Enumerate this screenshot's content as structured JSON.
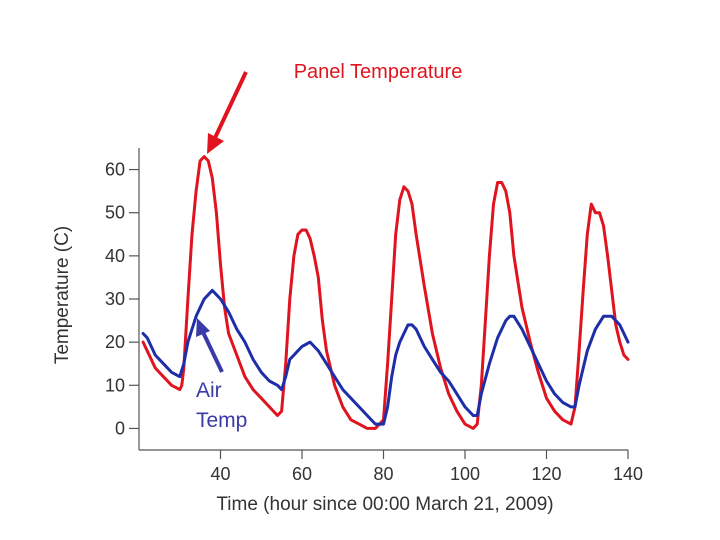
{
  "chart_data": {
    "type": "line",
    "xlabel": "Time (hour since 00:00 March 21, 2009)",
    "ylabel": "Temperature (C)",
    "xlim": [
      20,
      140
    ],
    "ylim": [
      -5,
      65
    ],
    "xticks": [
      40,
      60,
      80,
      100,
      120,
      140
    ],
    "yticks": [
      0,
      10,
      20,
      30,
      40,
      50,
      60
    ],
    "grid": false,
    "series": [
      {
        "name": "Panel Temperature",
        "color": "#e0141e",
        "x": [
          21,
          22,
          24,
          26,
          28,
          30,
          30.5,
          31,
          32,
          33,
          34,
          35,
          36,
          37,
          38,
          39,
          40,
          41,
          42,
          44,
          46,
          48,
          50,
          52,
          54,
          55,
          56,
          57,
          58,
          59,
          60,
          61,
          62,
          63,
          64,
          65,
          66,
          68,
          70,
          72,
          74,
          76,
          78,
          80,
          81,
          82,
          83,
          84,
          85,
          86,
          87,
          88,
          90,
          92,
          94,
          96,
          98,
          100,
          102,
          103,
          104,
          105,
          106,
          107,
          108,
          109,
          110,
          111,
          112,
          114,
          116,
          118,
          120,
          122,
          124,
          126,
          127,
          128,
          129,
          130,
          131,
          132,
          133,
          134,
          135,
          136,
          137,
          138,
          139,
          140
        ],
        "y": [
          20,
          18,
          14,
          12,
          10,
          9,
          10,
          14,
          30,
          45,
          55,
          62,
          63,
          62,
          58,
          50,
          38,
          28,
          22,
          17,
          12,
          9,
          7,
          5,
          3,
          4,
          15,
          30,
          40,
          45,
          46,
          46,
          44,
          40,
          35,
          25,
          18,
          10,
          5,
          2,
          1,
          0,
          0,
          2,
          15,
          30,
          45,
          53,
          56,
          55,
          52,
          45,
          33,
          22,
          14,
          8,
          4,
          1,
          0,
          1,
          10,
          25,
          40,
          52,
          57,
          57,
          55,
          50,
          40,
          28,
          20,
          13,
          7,
          4,
          2,
          1,
          5,
          18,
          32,
          45,
          52,
          50,
          50,
          47,
          40,
          32,
          24,
          20,
          17,
          16
        ]
      },
      {
        "name": "Air Temp",
        "color": "#1e2ea8",
        "x": [
          21,
          22,
          24,
          26,
          28,
          30,
          31,
          32,
          33,
          34,
          35,
          36,
          37,
          38,
          39,
          40,
          42,
          44,
          46,
          48,
          50,
          52,
          54,
          55,
          56,
          57,
          58,
          59,
          60,
          62,
          63,
          64,
          66,
          68,
          70,
          72,
          74,
          76,
          78,
          80,
          81,
          82,
          83,
          84,
          85,
          86,
          87,
          88,
          90,
          92,
          94,
          96,
          98,
          100,
          102,
          103,
          104,
          106,
          108,
          110,
          111,
          112,
          114,
          116,
          118,
          120,
          122,
          124,
          126,
          127,
          128,
          130,
          132,
          134,
          136,
          137,
          138,
          139,
          140
        ],
        "y": [
          22,
          21,
          17,
          15,
          13,
          12,
          15,
          20,
          23,
          26,
          28,
          30,
          31,
          32,
          31,
          30,
          27,
          23,
          20,
          16,
          13,
          11,
          10,
          9,
          12,
          16,
          17,
          18,
          19,
          20,
          19,
          18,
          15,
          12,
          9,
          7,
          5,
          3,
          1,
          1,
          5,
          12,
          17,
          20,
          22,
          24,
          24,
          23,
          19,
          16,
          13,
          11,
          8,
          5,
          3,
          3,
          8,
          15,
          21,
          25,
          26,
          26,
          23,
          19,
          15,
          11,
          8,
          6,
          5,
          5,
          10,
          18,
          23,
          26,
          26,
          25,
          24,
          22,
          20
        ]
      }
    ]
  },
  "annotations": {
    "panel_label": "Panel Temperature",
    "air_label_line1": "Air",
    "air_label_line2": "Temp",
    "panel_color": "#e0141e",
    "air_color": "#3a3aa8"
  }
}
